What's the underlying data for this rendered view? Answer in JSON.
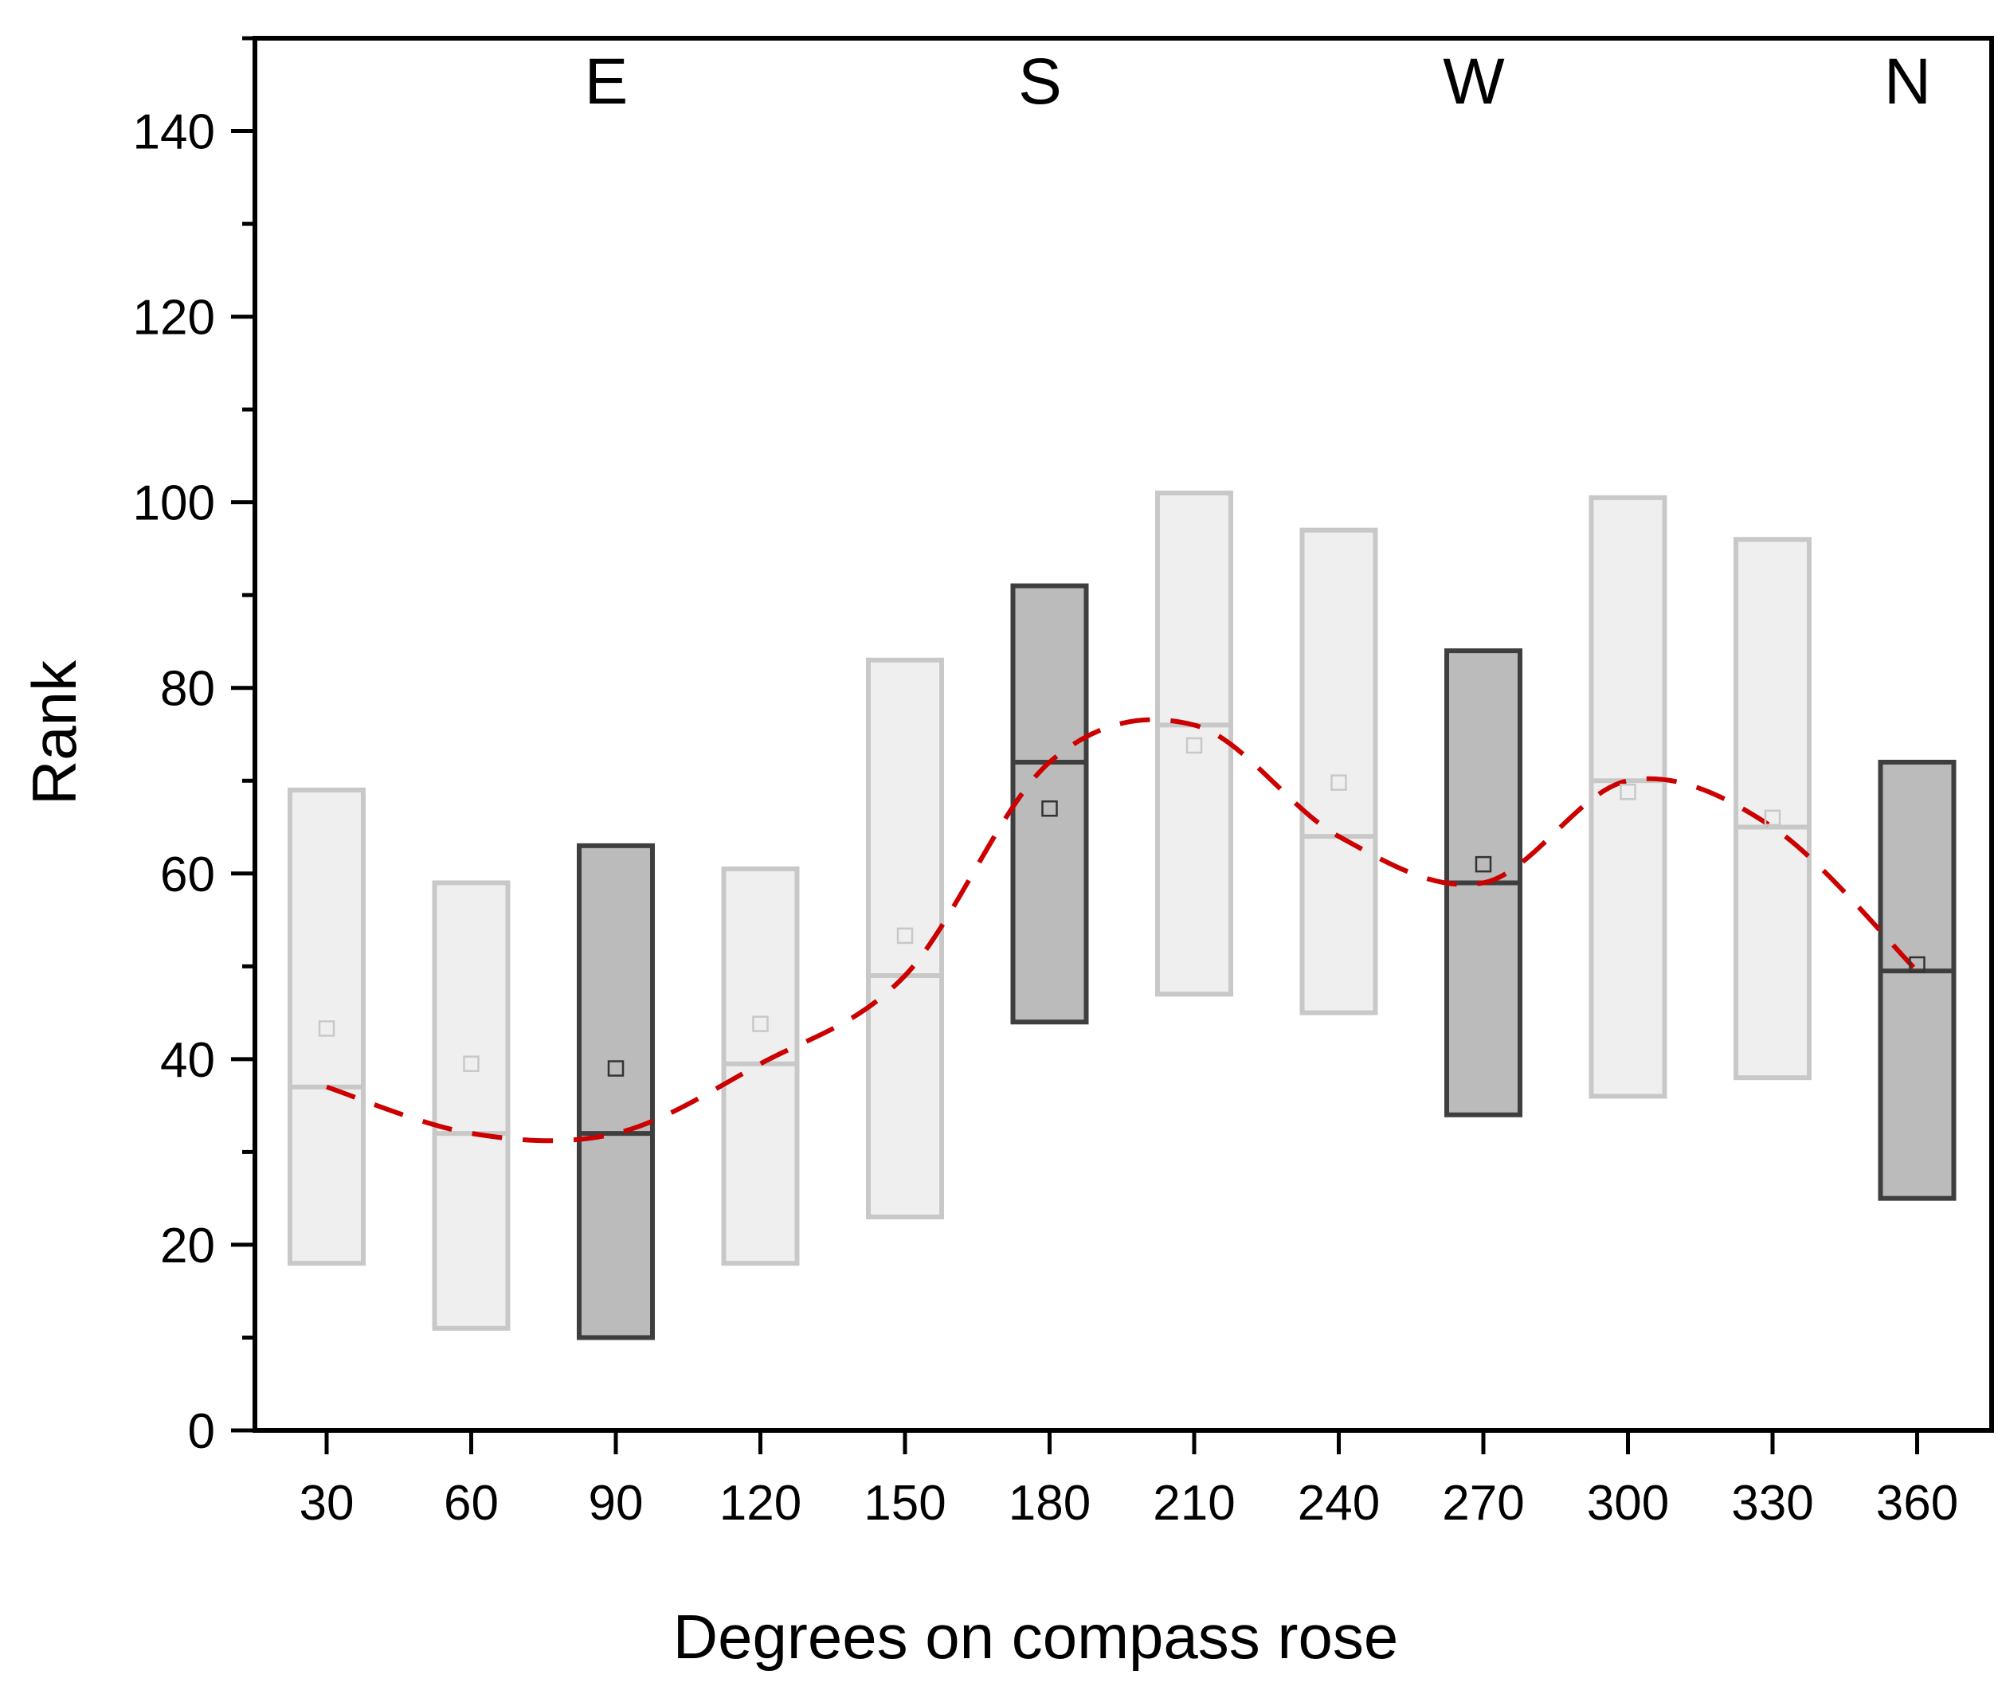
{
  "chart_data": {
    "type": "box",
    "xlabel": "Degrees on compass rose",
    "ylabel": "Rank",
    "ylim": [
      0,
      150
    ],
    "y_ticks": [
      0,
      20,
      40,
      60,
      80,
      100,
      120,
      140
    ],
    "y_minor_step": 10,
    "categories": [
      "30",
      "60",
      "90",
      "120",
      "150",
      "180",
      "210",
      "240",
      "270",
      "300",
      "330",
      "360"
    ],
    "boxes": [
      {
        "x": "30",
        "low": 18,
        "high": 69,
        "median": 37,
        "mean": 43.3,
        "highlight": false
      },
      {
        "x": "60",
        "low": 11,
        "high": 59,
        "median": 32,
        "mean": 39.5,
        "highlight": false
      },
      {
        "x": "90",
        "low": 10,
        "high": 63,
        "median": 32,
        "mean": 39,
        "highlight": true
      },
      {
        "x": "120",
        "low": 18,
        "high": 60.5,
        "median": 39.5,
        "mean": 43.8,
        "highlight": false
      },
      {
        "x": "150",
        "low": 23,
        "high": 83,
        "median": 49,
        "mean": 53.3,
        "highlight": false
      },
      {
        "x": "180",
        "low": 44,
        "high": 91,
        "median": 72,
        "mean": 67,
        "highlight": true
      },
      {
        "x": "210",
        "low": 47,
        "high": 101,
        "median": 76,
        "mean": 73.8,
        "highlight": false
      },
      {
        "x": "240",
        "low": 45,
        "high": 97,
        "median": 64,
        "mean": 69.8,
        "highlight": false
      },
      {
        "x": "270",
        "low": 34,
        "high": 84,
        "median": 59,
        "mean": 61,
        "highlight": true
      },
      {
        "x": "300",
        "low": 36,
        "high": 100.5,
        "median": 70,
        "mean": 68.8,
        "highlight": false
      },
      {
        "x": "330",
        "low": 38,
        "high": 96,
        "median": 65,
        "mean": 66,
        "highlight": false
      },
      {
        "x": "360",
        "low": 25,
        "high": 72,
        "median": 49.5,
        "mean": 50.2,
        "highlight": true
      }
    ],
    "trend_line": {
      "style": "dashed",
      "color": "#cc0000",
      "x": [
        "30",
        "60",
        "90",
        "120",
        "150",
        "180",
        "210",
        "240",
        "270",
        "300",
        "330",
        "360"
      ],
      "y": [
        37,
        32,
        32,
        39.5,
        49,
        72,
        76,
        64,
        59,
        70,
        65,
        49.5
      ]
    },
    "annotations": [
      {
        "text": "E",
        "x": "90"
      },
      {
        "text": "S",
        "x": "180"
      },
      {
        "text": "W",
        "x": "270"
      },
      {
        "text": "N",
        "x": "360"
      }
    ],
    "colors": {
      "box_fill": "#efefef",
      "box_stroke": "#c8c8c8",
      "highlight_fill": "#bbbbbb",
      "highlight_stroke": "#3e3e3e",
      "axis": "#000000"
    }
  }
}
